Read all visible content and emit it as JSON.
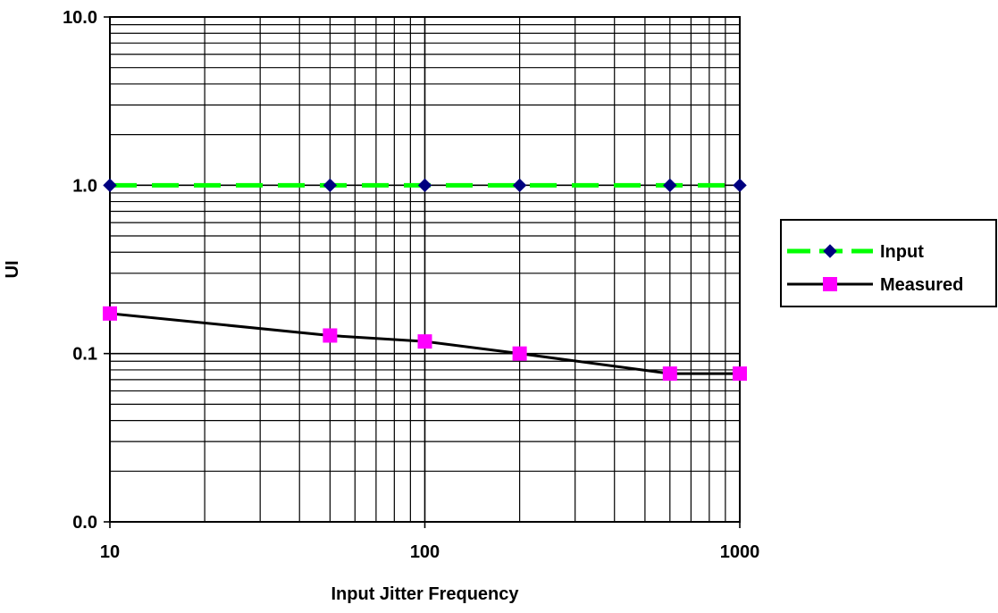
{
  "chart_data": {
    "type": "line",
    "title": "",
    "xlabel": "Input Jitter Frequency",
    "ylabel": "UI",
    "x_scale": "log",
    "y_scale": "log",
    "xlim": [
      10,
      1000
    ],
    "ylim": [
      0.01,
      10
    ],
    "x_ticks": [
      10,
      100,
      1000
    ],
    "x_tick_labels": [
      "10",
      "100",
      "1000"
    ],
    "y_ticks": [
      0.01,
      0.1,
      1,
      10
    ],
    "y_tick_labels": [
      "0.0",
      "0.1",
      "1.0",
      "10.0"
    ],
    "grid": true,
    "legend": "right",
    "series": [
      {
        "name": "Input",
        "x": [
          10,
          50,
          100,
          200,
          600,
          1000
        ],
        "y": [
          1.0,
          1.0,
          1.0,
          1.0,
          1.0,
          1.0
        ],
        "line_color": "#00ff00",
        "marker_color": "#000080",
        "marker": "diamond",
        "line_style": "dashed"
      },
      {
        "name": "Measured",
        "x": [
          10,
          50,
          100,
          200,
          600,
          1000
        ],
        "y": [
          0.173,
          0.128,
          0.118,
          0.1,
          0.076,
          0.076
        ],
        "line_color": "#000000",
        "marker_color": "#ff00ff",
        "marker": "square",
        "line_style": "solid"
      }
    ]
  }
}
